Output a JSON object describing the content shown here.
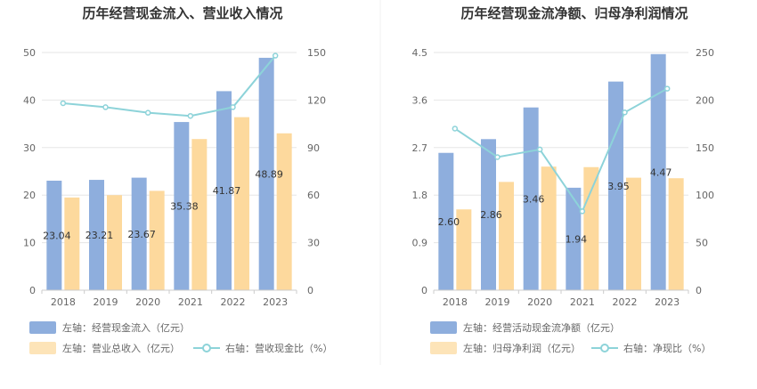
{
  "colors": {
    "bar_left": "#8eaedd",
    "bar_right": "#fdd99d",
    "line": "#8dd3d9",
    "grid": "#e6e6e6",
    "divider": "#f0f0f0"
  },
  "chart_data": [
    {
      "type": "bar",
      "title": "历年经营现金流入、营业收入情况",
      "categories": [
        "2018",
        "2019",
        "2020",
        "2021",
        "2022",
        "2023"
      ],
      "y_left_ticks": [
        "0",
        "10",
        "20",
        "30",
        "40",
        "50"
      ],
      "y_right_ticks": [
        "0",
        "30",
        "60",
        "90",
        "120",
        "150"
      ],
      "ylim_left": [
        0,
        50
      ],
      "ylim_right": [
        0,
        150
      ],
      "series": [
        {
          "name": "左轴：经营现金流入（亿元）",
          "kind": "bar",
          "axis": "left",
          "values": [
            23.04,
            23.21,
            23.67,
            35.38,
            41.87,
            48.89
          ],
          "labels": [
            "23.04",
            "23.21",
            "23.67",
            "35.38",
            "41.87",
            "48.89"
          ]
        },
        {
          "name": "左轴：营业总收入（亿元）",
          "kind": "bar",
          "axis": "left",
          "values": [
            19.5,
            20.0,
            20.9,
            31.8,
            36.4,
            33.0
          ]
        },
        {
          "name": "右轴：营收现金比（%）",
          "kind": "line",
          "axis": "right",
          "values": [
            118,
            115.5,
            112,
            110,
            115.5,
            148
          ]
        }
      ]
    },
    {
      "type": "bar",
      "title": "历年经营现金流净额、归母净利润情况",
      "categories": [
        "2018",
        "2019",
        "2020",
        "2021",
        "2022",
        "2023"
      ],
      "y_left_ticks": [
        "0",
        "0.9",
        "1.8",
        "2.7",
        "3.6",
        "4.5"
      ],
      "y_right_ticks": [
        "0",
        "50",
        "100",
        "150",
        "200",
        "250"
      ],
      "ylim_left": [
        0,
        4.5
      ],
      "ylim_right": [
        0,
        250
      ],
      "series": [
        {
          "name": "左轴：经营活动现金流净额（亿元）",
          "kind": "bar",
          "axis": "left",
          "values": [
            2.6,
            2.86,
            3.46,
            1.94,
            3.95,
            4.47
          ],
          "labels": [
            "2.60",
            "2.86",
            "3.46",
            "1.94",
            "3.95",
            "4.47"
          ]
        },
        {
          "name": "左轴：归母净利润（亿元）",
          "kind": "bar",
          "axis": "left",
          "values": [
            1.53,
            2.05,
            2.34,
            2.33,
            2.13,
            2.12
          ]
        },
        {
          "name": "右轴：净现比（%）",
          "kind": "line",
          "axis": "right",
          "values": [
            170,
            140,
            148,
            83,
            187,
            212
          ]
        }
      ]
    }
  ]
}
